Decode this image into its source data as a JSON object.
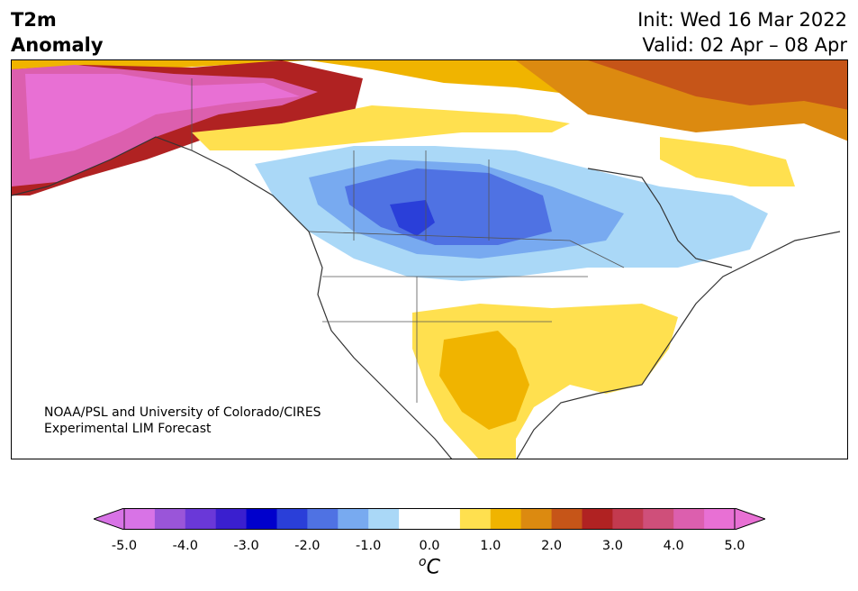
{
  "title": {
    "left_line1": "T2m",
    "left_line2": "Anomaly",
    "init": "Init: Wed 16 Mar 2022",
    "valid": "Valid: 02 Apr – 08 Apr"
  },
  "credit": {
    "line1": "NOAA/PSL and University of Colorado/CIRES",
    "line2": "Experimental LIM Forecast"
  },
  "colorbar": {
    "unit_symbol": "C",
    "unit_prefix": "o",
    "ticks": [
      "-5.0",
      "-4.0",
      "-3.0",
      "-2.0",
      "-1.0",
      "0.0",
      "1.0",
      "2.0",
      "3.0",
      "4.0",
      "5.0"
    ],
    "colors": [
      "#d873e6",
      "#9a55d9",
      "#6a38d8",
      "#3a1fcf",
      "#0000cc",
      "#2a3fd9",
      "#4f72e3",
      "#78aaf0",
      "#aad8f7",
      "#ffffff",
      "#ffffff",
      "#ffe04f",
      "#f0b400",
      "#dc8a10",
      "#c65518",
      "#b02222",
      "#c33a4f",
      "#cf4f7a",
      "#dc5fae",
      "#e870d4"
    ],
    "min_arrow_color": "#d873e6",
    "max_arrow_color": "#e870d4"
  },
  "map": {
    "region": "North America",
    "ocean_color": "#ffffff",
    "coast_color": "#333333"
  }
}
